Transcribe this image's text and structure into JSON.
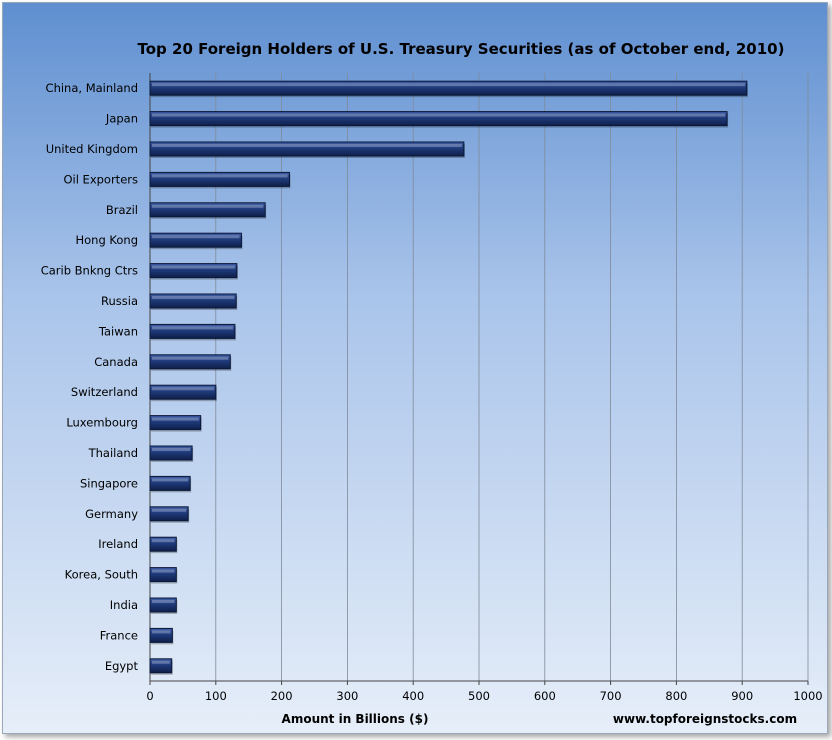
{
  "chart_data": {
    "type": "bar",
    "orientation": "horizontal",
    "title": "Top 20 Foreign Holders of U.S. Treasury Securities (as of October end, 2010)",
    "xlabel": "Amount  in Billions ($)",
    "ylabel": "",
    "source_note": "www.topforeignstocks.com",
    "xlim": [
      0,
      1000
    ],
    "x_ticks": [
      "0",
      "100",
      "200",
      "300",
      "400",
      "500",
      "600",
      "700",
      "800",
      "900",
      "1000"
    ],
    "grid": "vertical",
    "legend": "none",
    "categories": [
      "China, Mainland",
      "Japan",
      "United Kingdom",
      "Oil Exporters",
      "Brazil",
      "Hong Kong",
      "Carib Bnkng Ctrs",
      "Russia",
      "Taiwan",
      "Canada",
      "Switzerland",
      "Luxembourg",
      "Thailand",
      "Singapore",
      "Germany",
      "Ireland",
      "Korea, South",
      "India",
      "France",
      "Egypt"
    ],
    "values": [
      907,
      877,
      477,
      212,
      175,
      139,
      132,
      131,
      129,
      122,
      100,
      77,
      64,
      61,
      58,
      40,
      40,
      40,
      34,
      33
    ],
    "bar_color": "#1f3a7a"
  }
}
